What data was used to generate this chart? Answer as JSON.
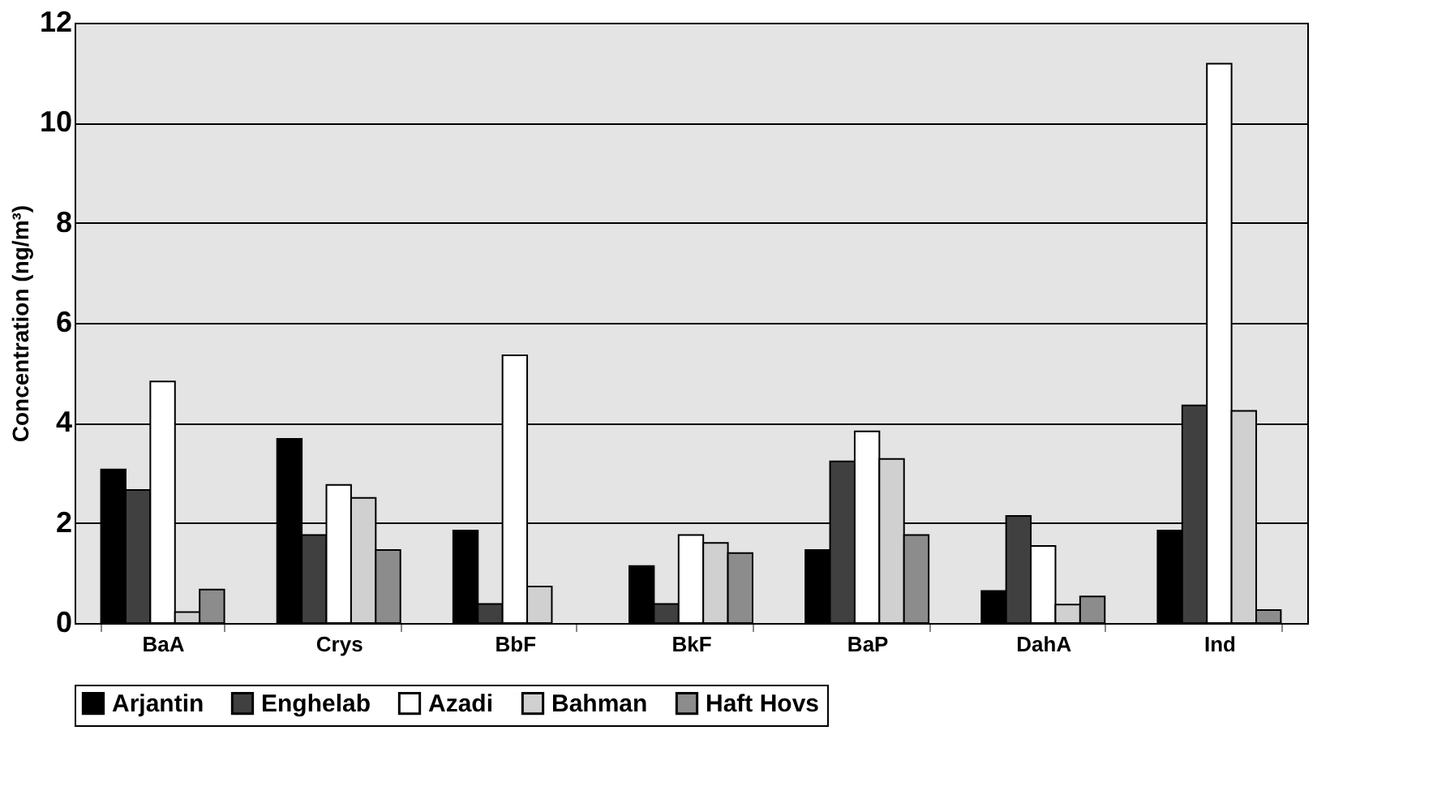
{
  "chart_data": {
    "type": "bar",
    "ylabel": "Concentration (ng/m³)",
    "categories": [
      "BaA",
      "Crys",
      "BbF",
      "BkF",
      "BaP",
      "DahA",
      "Ind"
    ],
    "series": [
      {
        "name": "Arjantin",
        "color": "#000000",
        "values": [
          3.07,
          3.68,
          1.85,
          1.14,
          1.46,
          0.64,
          1.85
        ]
      },
      {
        "name": "Enghelab",
        "color": "#404040",
        "values": [
          2.66,
          1.76,
          0.38,
          0.38,
          3.23,
          2.14,
          4.35
        ]
      },
      {
        "name": "Azadi",
        "color": "#ffffff",
        "values": [
          4.83,
          2.76,
          5.35,
          1.76,
          3.83,
          1.54,
          11.18
        ]
      },
      {
        "name": "Bahman",
        "color": "#d0d0d0",
        "values": [
          0.22,
          2.5,
          0.73,
          1.6,
          3.28,
          0.37,
          4.24
        ]
      },
      {
        "name": "Haft Hovs",
        "color": "#8c8c8c",
        "values": [
          0.67,
          1.46,
          null,
          1.4,
          1.76,
          0.53,
          0.26
        ]
      }
    ],
    "ylim": [
      0,
      12
    ],
    "yticks": [
      0,
      2,
      4,
      6,
      8,
      10,
      12
    ],
    "grid": "y",
    "legend": "bottom"
  }
}
